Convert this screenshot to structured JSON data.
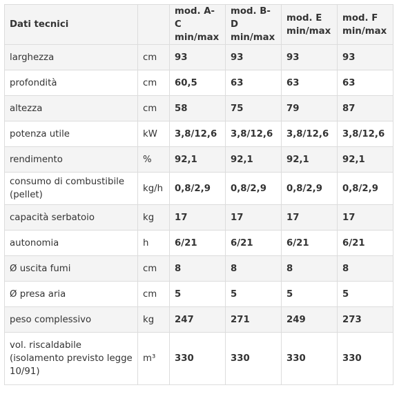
{
  "table": {
    "header": {
      "title": "Dati tecnici",
      "unit": "",
      "models": [
        {
          "name": "mod. A-C",
          "sub": "min/max"
        },
        {
          "name": "mod. B-D",
          "sub": "min/max"
        },
        {
          "name": "mod. E",
          "sub": "min/max"
        },
        {
          "name": "mod. F",
          "sub": "min/max"
        }
      ]
    },
    "rows": [
      {
        "label": "larghezza",
        "unit": "cm",
        "values": [
          "93",
          "93",
          "93",
          "93"
        ]
      },
      {
        "label": "profondità",
        "unit": "cm",
        "values": [
          "60,5",
          "63",
          "63",
          "63"
        ]
      },
      {
        "label": "altezza",
        "unit": "cm",
        "values": [
          "58",
          "75",
          "79",
          "87"
        ]
      },
      {
        "label": "potenza utile",
        "unit": "kW",
        "values": [
          "3,8/12,6",
          "3,8/12,6",
          "3,8/12,6",
          "3,8/12,6"
        ]
      },
      {
        "label": "rendimento",
        "unit": "%",
        "values": [
          "92,1",
          "92,1",
          "92,1",
          "92,1"
        ]
      },
      {
        "label": "consumo di combustibile (pellet)",
        "unit": "kg/h",
        "values": [
          "0,8/2,9",
          "0,8/2,9",
          "0,8/2,9",
          "0,8/2,9"
        ]
      },
      {
        "label": "capacità serbatoio",
        "unit": "kg",
        "values": [
          "17",
          "17",
          "17",
          "17"
        ]
      },
      {
        "label": "autonomia",
        "unit": "h",
        "values": [
          "6/21",
          "6/21",
          "6/21",
          "6/21"
        ]
      },
      {
        "label": "Ø uscita fumi",
        "unit": "cm",
        "values": [
          "8",
          "8",
          "8",
          "8"
        ]
      },
      {
        "label": "Ø presa aria",
        "unit": "cm",
        "values": [
          "5",
          "5",
          "5",
          "5"
        ]
      },
      {
        "label": "peso complessivo",
        "unit": "kg",
        "values": [
          "247",
          "271",
          "249",
          "273"
        ]
      },
      {
        "label": "vol. riscaldabile (isolamento previsto legge 10/91)",
        "unit": "m³",
        "values": [
          "330",
          "330",
          "330",
          "330"
        ]
      }
    ]
  }
}
